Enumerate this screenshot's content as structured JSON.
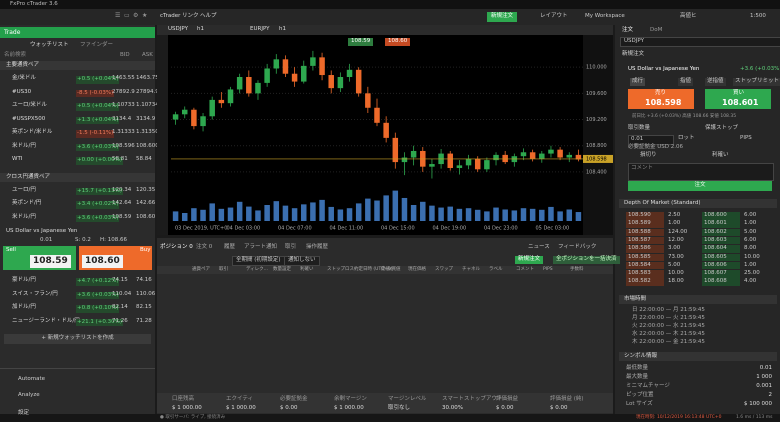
{
  "title_bar": {
    "title": "FxPro cTrader 3.6"
  },
  "menu": {
    "items": [
      "cTrader",
      "リンク",
      "ヘルプ"
    ],
    "new_order": "新規注文",
    "layout": "レイアウト",
    "workspace": "My Workspace",
    "account": "高値ヒ",
    "leverage": "1:500"
  },
  "left": {
    "header": "Trade",
    "tabs": [
      "ウォッチリスト",
      "ファインダー"
    ],
    "search": "名前検索",
    "columns": [
      "BID",
      "ASK"
    ],
    "groups": [
      {
        "name": "主要通貨ペア",
        "rows": [
          {
            "symbol": "金/米ドル",
            "change": "+0.5 (+0.04%)",
            "bid": "1463.55",
            "ask": "1463.75"
          },
          {
            "symbol": "#US30",
            "change": "-8.5 (-0.03%)",
            "bid": "27892.9",
            "ask": "27894.9"
          },
          {
            "symbol": "ユーロ/米ドル",
            "change": "+0.5 (+0.04%)",
            "bid": "1.10733",
            "ask": "1.10734"
          },
          {
            "symbol": "#USSPX500",
            "change": "+1.3 (+0.04%)",
            "bid": "3134.4",
            "ask": "3134.9"
          },
          {
            "symbol": "英ポンド/米ドル",
            "change": "-1.5 (-0.11%)",
            "bid": "1.31333",
            "ask": "1.31350"
          },
          {
            "symbol": "米ドル/円",
            "change": "+3.6 (+0.03%)",
            "bid": "108.596",
            "ask": "108.600"
          },
          {
            "symbol": "WTI",
            "change": "+0.00 (+0.00%)",
            "bid": "58.81",
            "ask": "58.84"
          }
        ]
      },
      {
        "name": "クロス円通貨ペア",
        "rows": [
          {
            "symbol": "ユーロ/円",
            "change": "+15.7 (+0.13%)",
            "bid": "120.34",
            "ask": "120.35"
          },
          {
            "symbol": "英ポンド/円",
            "change": "+3.4 (+0.02%)",
            "bid": "142.64",
            "ask": "142.66"
          },
          {
            "symbol": "米ドル/円",
            "change": "+3.6 (+0.03%)",
            "bid": "108.59",
            "ask": "108.60"
          }
        ]
      }
    ],
    "detail": {
      "name": "US Dollar vs Japanese Yen",
      "qty": "0.01",
      "spread": "S: 0.2",
      "high": "H: 108.66",
      "sell": "Sell",
      "buy": "Buy",
      "sell_price": "108.59",
      "buy_price": "108.60"
    },
    "rows2": [
      {
        "symbol": "豪ドル/円",
        "change": "+4.7 (+0.12%)",
        "bid": "74.15",
        "ask": "74.16"
      },
      {
        "symbol": "スイス・フラン/円",
        "change": "+3.6 (+0.03%)",
        "bid": "110.04",
        "ask": "110.06"
      },
      {
        "symbol": "加ドル/円",
        "change": "+0.8 (+0.10%)",
        "bid": "82.14",
        "ask": "82.15"
      },
      {
        "symbol": "ニュージーランド・ドル/円",
        "change": "+21.1 (+0.30%)",
        "bid": "71.26",
        "ask": "71.28"
      }
    ],
    "new_watchlist": "+ 新規ウォッチリストを作成",
    "nav": [
      "Automate",
      "Analyze",
      "設定"
    ]
  },
  "chart": {
    "type": "candlestick",
    "tabs": [
      "USDJPY",
      "h1",
      "EURJPY",
      "h1"
    ],
    "quick_sell": "108.59",
    "quick_buy": "108.60",
    "ylim": [
      108.2,
      110.4
    ],
    "yticks": [
      {
        "value": 108.4,
        "label": "108.400"
      },
      {
        "value": 108.8,
        "label": "108.800"
      },
      {
        "value": 109.2,
        "label": "109.200"
      },
      {
        "value": 109.6,
        "label": "109.600"
      },
      {
        "value": 110.0,
        "label": "110.000"
      }
    ],
    "current": {
      "value": 108.598,
      "label": "108.598"
    },
    "candles": [
      [
        109.2,
        109.32,
        109.12,
        109.28
      ],
      [
        109.28,
        109.4,
        109.22,
        109.35
      ],
      [
        109.35,
        109.38,
        109.05,
        109.1
      ],
      [
        109.1,
        109.3,
        109.02,
        109.25
      ],
      [
        109.25,
        109.55,
        109.2,
        109.5
      ],
      [
        109.5,
        109.62,
        109.38,
        109.45
      ],
      [
        109.45,
        109.7,
        109.4,
        109.66
      ],
      [
        109.66,
        109.9,
        109.6,
        109.85
      ],
      [
        109.85,
        109.95,
        109.55,
        109.6
      ],
      [
        109.6,
        109.8,
        109.5,
        109.76
      ],
      [
        109.76,
        110.05,
        109.7,
        109.98
      ],
      [
        109.98,
        110.2,
        109.9,
        110.12
      ],
      [
        110.12,
        110.18,
        109.85,
        109.9
      ],
      [
        109.9,
        110.0,
        109.7,
        109.78
      ],
      [
        109.78,
        110.1,
        109.75,
        110.02
      ],
      [
        110.02,
        110.25,
        109.95,
        110.15
      ],
      [
        110.15,
        110.22,
        109.8,
        109.88
      ],
      [
        109.88,
        109.95,
        109.6,
        109.68
      ],
      [
        109.68,
        109.92,
        109.62,
        109.85
      ],
      [
        109.85,
        110.05,
        109.78,
        109.96
      ],
      [
        109.96,
        110.0,
        109.55,
        109.6
      ],
      [
        109.6,
        109.7,
        109.3,
        109.38
      ],
      [
        109.38,
        109.52,
        109.1,
        109.15
      ],
      [
        109.15,
        109.25,
        108.85,
        108.92
      ],
      [
        108.92,
        109.0,
        108.45,
        108.55
      ],
      [
        108.55,
        108.7,
        108.35,
        108.62
      ],
      [
        108.62,
        108.8,
        108.5,
        108.72
      ],
      [
        108.72,
        108.78,
        108.4,
        108.48
      ],
      [
        108.48,
        108.6,
        108.3,
        108.52
      ],
      [
        108.52,
        108.75,
        108.45,
        108.68
      ],
      [
        108.68,
        108.72,
        108.42,
        108.46
      ],
      [
        108.46,
        108.58,
        108.36,
        108.5
      ],
      [
        108.5,
        108.66,
        108.44,
        108.6
      ],
      [
        108.6,
        108.64,
        108.4,
        108.44
      ],
      [
        108.44,
        108.62,
        108.4,
        108.58
      ],
      [
        108.58,
        108.7,
        108.5,
        108.66
      ],
      [
        108.66,
        108.72,
        108.52,
        108.55
      ],
      [
        108.55,
        108.68,
        108.48,
        108.64
      ],
      [
        108.64,
        108.76,
        108.58,
        108.7
      ],
      [
        108.7,
        108.74,
        108.56,
        108.6
      ],
      [
        108.6,
        108.72,
        108.54,
        108.68
      ],
      [
        108.68,
        108.8,
        108.62,
        108.74
      ],
      [
        108.74,
        108.78,
        108.58,
        108.62
      ],
      [
        108.62,
        108.7,
        108.55,
        108.66
      ],
      [
        108.66,
        108.74,
        108.56,
        108.59
      ]
    ],
    "up_color": "#2ea84f",
    "down_color": "#ee6a2a",
    "volumes": [
      30,
      25,
      40,
      35,
      55,
      38,
      42,
      60,
      45,
      33,
      50,
      62,
      48,
      40,
      52,
      58,
      66,
      44,
      36,
      40,
      55,
      70,
      64,
      80,
      95,
      72,
      50,
      60,
      48,
      42,
      45,
      38,
      40,
      35,
      30,
      42,
      36,
      33,
      40,
      38,
      35,
      44,
      30,
      36,
      28
    ],
    "volume_lim": [
      0,
      100
    ],
    "volume_color": "#3b6fb0",
    "xlabels": [
      "03 Dec 2019, UTC+0",
      "04 Dec 03:00",
      "04 Dec 07:00",
      "04 Dec 11:00",
      "04 Dec 15:00",
      "04 Dec 19:00",
      "04 Dec 23:00",
      "05 Dec 03:00"
    ]
  },
  "bottom": {
    "tabs": [
      "ポジション 0",
      "注文 0",
      "履歴",
      "アラート通知",
      "取引",
      "操作履歴"
    ],
    "new_order": "新規注文",
    "close_all": "全ポジションを一括決済",
    "news": "ニュース",
    "feedback": "フィードバック",
    "filters": [
      "全期間 (初期設定)",
      "通知しない"
    ],
    "columns": [
      "通貨ペア",
      "取引",
      "ディレク...",
      "数量設定",
      "利確い",
      "ストップロス",
      "約定日時 (UTC+0)",
      "建値/買値",
      "現在価格",
      "スワップ",
      "チャネル",
      "ラベル",
      "コメント",
      "PIPS",
      "手数料"
    ],
    "footer": [
      [
        "口座残高",
        "$ 1 000.00"
      ],
      [
        "エクイティ",
        "$ 1 000.00"
      ],
      [
        "必要証拠金",
        "$ 0.00"
      ],
      [
        "余剰マージン",
        "$ 1 000.00"
      ],
      [
        "マージンレベル",
        "取引なし"
      ],
      [
        "スマートストップアウト",
        "30.00%"
      ],
      [
        "評価損益",
        "$ 0.00"
      ],
      [
        "評価損益 (純)",
        "$ 0.00"
      ]
    ]
  },
  "right": {
    "tabs": [
      "注文",
      "DoM"
    ],
    "symbol": "USDJPY",
    "section": "新規注文",
    "name": "US Dollar vs Japanese Yen",
    "change": "+3.6 (+0.03%)",
    "order_types": [
      "成行",
      "指値",
      "逆指値",
      "ストップリミット"
    ],
    "sell": "売り",
    "sell_price": "108.598",
    "buy": "買い",
    "buy_price": "108.601",
    "info": "前日比 +3.6 (+0.03%) 高値 108.66 安値 108.35",
    "qty_label": "取引数量",
    "protect": "保護ストップ",
    "qty": "0.01",
    "unit": "ロット",
    "pips_label": "PIPS",
    "margin": "必要証拠金 USD 2.06",
    "stop_loss": "損切り",
    "take_profit": "利確い",
    "comment": "コメント",
    "submit": "注文",
    "dom": {
      "title": "Depth Of Market (Standard)",
      "bids": [
        [
          "108.590",
          "2.50"
        ],
        [
          "108.589",
          "1.00"
        ],
        [
          "108.588",
          "124.00"
        ],
        [
          "108.587",
          "12.00"
        ],
        [
          "108.586",
          "3.00"
        ],
        [
          "108.585",
          "73.00"
        ],
        [
          "108.584",
          "5.00"
        ],
        [
          "108.583",
          "10.00"
        ],
        [
          "108.582",
          "18.00"
        ]
      ],
      "asks": [
        [
          "108.600",
          "6.00"
        ],
        [
          "108.601",
          "1.00"
        ],
        [
          "108.602",
          "5.00"
        ],
        [
          "108.603",
          "6.00"
        ],
        [
          "108.604",
          "8.00"
        ],
        [
          "108.605",
          "10.00"
        ],
        [
          "108.606",
          "1.00"
        ],
        [
          "108.607",
          "25.00"
        ],
        [
          "108.608",
          "4.00"
        ]
      ]
    },
    "hours": {
      "title": "市場時間",
      "rows": [
        "日 22:00:00 — 月 21:59:45",
        "月 22:00:00 — 火 21:59:45",
        "火 22:00:00 — 水 21:59:45",
        "水 22:00:00 — 木 21:59:45",
        "木 22:00:00 — 金 21:59:45"
      ]
    },
    "symbol_info": {
      "title": "シンボル情報",
      "rows": [
        [
          "最低数量",
          "0.01"
        ],
        [
          "最大数量",
          "1 000"
        ],
        [
          "ミニマムチャージ",
          "0.001"
        ],
        [
          "ピップ位置",
          "2"
        ],
        [
          "Lot サイズ",
          "$ 100 000"
        ]
      ]
    }
  },
  "status": {
    "left": "● 取引サーバ: ライブ, 接続済み",
    "right": "現在時刻: 10/12/2019 16:13:48 UTC+0",
    "latency": "1.6 ms / 113 ms"
  }
}
